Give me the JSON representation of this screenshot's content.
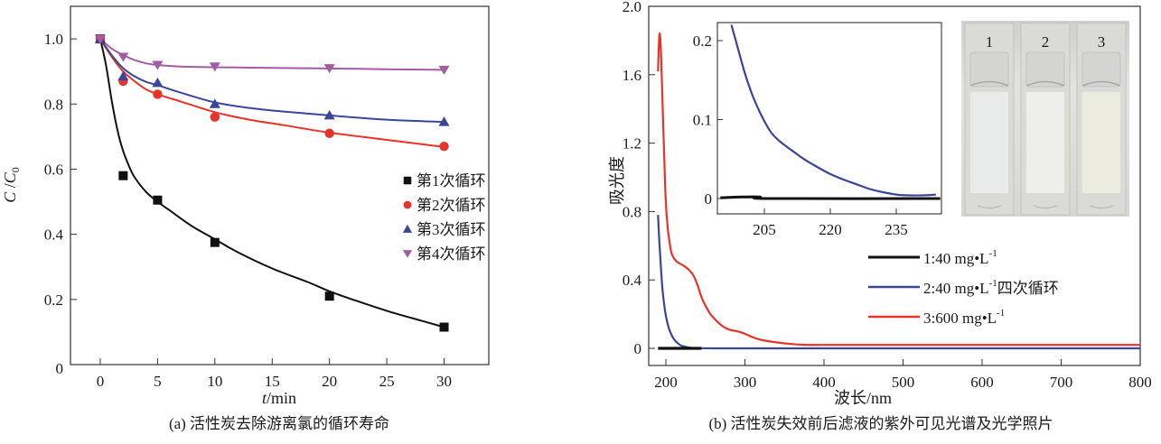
{
  "chart_data": [
    {
      "id": "a",
      "type": "scatter",
      "caption": "(a) 活性炭去除游离氯的循环寿命",
      "title": "",
      "xlabel_italic": "t",
      "xlabel_unit": "/min",
      "ylabel_C": "C",
      "ylabel_sep": " /",
      "ylabel_C0": "C",
      "ylabel_sub": "0",
      "xlim": [
        -2.6,
        33.9
      ],
      "ylim": [
        0,
        1.1
      ],
      "xticks": [
        0,
        5,
        10,
        15,
        20,
        25,
        30
      ],
      "xtick_labels": [
        "0",
        "5",
        "10",
        "15",
        "20",
        "25",
        "30"
      ],
      "yticks": [
        0,
        0.2,
        0.4,
        0.6,
        0.8,
        1.0
      ],
      "ytick_labels": [
        "0",
        "0.2",
        "0.4",
        "0.6",
        "0.8",
        "1.0"
      ],
      "grid": false,
      "legend_position": "center-right",
      "series": [
        {
          "name": "第1次循环",
          "marker": "square",
          "color": "#111111",
          "x": [
            0,
            2,
            5,
            10,
            20,
            30
          ],
          "y": [
            1.0,
            0.58,
            0.505,
            0.375,
            0.21,
            0.115
          ],
          "fit_x": [
            0,
            0.5,
            1,
            1.5,
            2,
            2.5,
            3,
            4,
            5,
            6,
            8,
            10,
            12,
            15,
            18,
            20,
            22,
            25,
            28,
            30
          ],
          "fit_y": [
            1.0,
            0.92,
            0.81,
            0.72,
            0.655,
            0.61,
            0.575,
            0.53,
            0.5,
            0.475,
            0.425,
            0.385,
            0.345,
            0.295,
            0.255,
            0.225,
            0.2,
            0.165,
            0.135,
            0.115
          ]
        },
        {
          "name": "第2次循环",
          "marker": "circle",
          "color": "#e8332a",
          "x": [
            0,
            2,
            5,
            10,
            20,
            30
          ],
          "y": [
            1.0,
            0.87,
            0.83,
            0.76,
            0.71,
            0.67
          ],
          "fit_x": [
            0,
            1,
            2,
            3,
            4,
            5,
            7,
            10,
            13,
            16,
            20,
            25,
            30
          ],
          "fit_y": [
            1.0,
            0.945,
            0.9,
            0.87,
            0.845,
            0.83,
            0.808,
            0.775,
            0.752,
            0.735,
            0.712,
            0.69,
            0.668
          ]
        },
        {
          "name": "第3次循环",
          "marker": "triangle-up",
          "color": "#3a469a",
          "x": [
            0,
            2,
            5,
            10,
            20,
            30
          ],
          "y": [
            1.0,
            0.885,
            0.865,
            0.8,
            0.765,
            0.745
          ],
          "fit_x": [
            0,
            1,
            2,
            3,
            4,
            5,
            7,
            10,
            13,
            16,
            20,
            25,
            30
          ],
          "fit_y": [
            1.0,
            0.95,
            0.91,
            0.885,
            0.868,
            0.858,
            0.835,
            0.805,
            0.788,
            0.777,
            0.765,
            0.752,
            0.745
          ]
        },
        {
          "name": "第4次循环",
          "marker": "triangle-down",
          "color": "#a35ba3",
          "x": [
            0,
            2,
            5,
            10,
            20,
            30
          ],
          "y": [
            1.0,
            0.945,
            0.92,
            0.915,
            0.91,
            0.905
          ],
          "fit_x": [
            0,
            1,
            2,
            3,
            4,
            5,
            7,
            10,
            15,
            20,
            25,
            30
          ],
          "fit_y": [
            1.0,
            0.97,
            0.95,
            0.935,
            0.925,
            0.92,
            0.915,
            0.913,
            0.911,
            0.909,
            0.907,
            0.905
          ]
        }
      ]
    },
    {
      "id": "b",
      "type": "line",
      "caption": "(b) 活性炭失效前后滤液的紫外可见光谱及光学照片",
      "title": "",
      "xlabel": "波长/nm",
      "ylabel": "吸光度",
      "xlim": [
        188,
        800
      ],
      "ylim": [
        -0.1,
        2.0
      ],
      "xticks": [
        200,
        300,
        400,
        500,
        600,
        700,
        800
      ],
      "xtick_labels": [
        "200",
        "300",
        "400",
        "500",
        "600",
        "700",
        "800"
      ],
      "yticks": [
        0,
        0.4,
        0.8,
        1.2,
        1.6,
        2.0
      ],
      "ytick_labels": [
        "0",
        "0.4",
        "0.8",
        "1.2",
        "1.6",
        "2.0"
      ],
      "grid": false,
      "legend_position": "center-right",
      "series": [
        {
          "name": "1:40  mg•L",
          "sup": "-1",
          "suffix": "",
          "color": "#111111",
          "x": [
            190,
            200,
            220,
            245
          ],
          "y": [
            0,
            0,
            0,
            0
          ]
        },
        {
          "name": "2:40  mg•L",
          "sup": "-1",
          "suffix": "四次循环",
          "color": "#3a469a",
          "x": [
            190,
            192,
            194,
            196,
            198,
            200,
            203,
            206,
            210,
            215,
            220,
            230,
            240,
            260,
            300,
            400,
            500,
            600,
            700,
            800
          ],
          "y": [
            0.78,
            0.6,
            0.45,
            0.33,
            0.25,
            0.19,
            0.13,
            0.09,
            0.055,
            0.03,
            0.015,
            0.004,
            0.001,
            0,
            0,
            0,
            0,
            0,
            0,
            0
          ]
        },
        {
          "name": "3:600  mg•L",
          "sup": "-1",
          "suffix": "",
          "color": "#e8332a",
          "x": [
            190,
            192,
            194,
            196,
            198,
            200,
            202,
            204,
            206,
            208,
            212,
            216,
            220,
            225,
            230,
            235,
            240,
            245,
            250,
            255,
            260,
            270,
            280,
            290,
            300,
            310,
            320,
            340,
            360,
            380,
            400,
            500,
            600,
            700,
            800
          ],
          "y": [
            1.62,
            1.84,
            1.7,
            1.4,
            1.1,
            0.85,
            0.72,
            0.64,
            0.58,
            0.545,
            0.515,
            0.5,
            0.49,
            0.475,
            0.455,
            0.425,
            0.37,
            0.3,
            0.25,
            0.21,
            0.18,
            0.135,
            0.11,
            0.1,
            0.085,
            0.065,
            0.05,
            0.035,
            0.025,
            0.02,
            0.02,
            0.02,
            0.02,
            0.02,
            0.02
          ]
        }
      ],
      "inset": {
        "xlim": [
          195,
          245
        ],
        "ylim": [
          -0.02,
          0.22
        ],
        "xticks": [
          205,
          220,
          235
        ],
        "xtick_labels": [
          "205",
          "220",
          "235"
        ],
        "yticks": [
          0,
          0.1,
          0.2
        ],
        "ytick_labels": [
          "0",
          "0.1",
          "0.2"
        ],
        "series": [
          {
            "name": "blue",
            "color": "#3a469a",
            "x": [
              197.5,
              199,
              200.5,
              202,
              203.5,
              205,
              206.5,
              208,
              210,
              212,
              214,
              217,
              220,
              223,
              226,
              229,
              232,
              235,
              238,
              241,
              244
            ],
            "y": [
              0.22,
              0.19,
              0.16,
              0.135,
              0.115,
              0.098,
              0.084,
              0.075,
              0.066,
              0.058,
              0.05,
              0.04,
              0.031,
              0.024,
              0.018,
              0.012,
              0.008,
              0.005,
              0.004,
              0.004,
              0.005
            ]
          },
          {
            "name": "black",
            "color": "#111111",
            "x": [
              195,
              200,
              204,
              206,
              245
            ],
            "y": [
              0.001,
              0.002,
              0.002,
              0.0,
              0.0
            ]
          }
        ]
      },
      "photo": {
        "cuvette_labels": [
          "1",
          "2",
          "3"
        ]
      }
    }
  ]
}
